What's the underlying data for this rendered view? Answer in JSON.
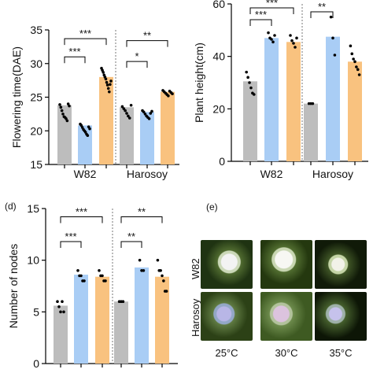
{
  "colors": {
    "gray": "#bdbdbd",
    "blue": "#a9cdf5",
    "orange": "#f9c27f",
    "dot": "#000000"
  },
  "panels": {
    "d_tag": "(d)",
    "e_tag": "(e)"
  },
  "photos": {
    "rows": [
      "W82",
      "Harosoy"
    ],
    "temperatures": [
      "25°C",
      "30°C",
      "35°C"
    ]
  },
  "chart_data": [
    {
      "id": "flowering",
      "type": "bar",
      "ylabel": "Flowering time(DAE)",
      "ylim": [
        15,
        35
      ],
      "yticks": [
        15,
        20,
        25,
        30,
        35
      ],
      "groups": [
        "W82",
        "Harosoy"
      ],
      "bars": [
        {
          "group": "W82",
          "color": "gray",
          "value": 23.8,
          "points": [
            23.9,
            23.5,
            23,
            22.5,
            22.1,
            22,
            21.8,
            21.5,
            24,
            23.7
          ]
        },
        {
          "group": "W82",
          "color": "blue",
          "value": 20.8,
          "points": [
            21,
            20.8,
            20.5,
            20.2,
            20,
            19.8,
            19.5,
            19.3,
            20.6,
            20.3
          ]
        },
        {
          "group": "W82",
          "color": "orange",
          "value": 28.0,
          "points": [
            29.3,
            29,
            28.7,
            28.3,
            28,
            27.7,
            27.2,
            26.8,
            26.3,
            25.8,
            26.9,
            27.4
          ]
        },
        {
          "group": "Harosoy",
          "color": "gray",
          "value": 23.5,
          "points": [
            23.6,
            23.3,
            23,
            22.6,
            22.2,
            21.9,
            23.8
          ]
        },
        {
          "group": "Harosoy",
          "color": "blue",
          "value": 22.8,
          "points": [
            23,
            22.8,
            22.5,
            22.2,
            22,
            21.8,
            22.6,
            22.9
          ]
        },
        {
          "group": "Harosoy",
          "color": "orange",
          "value": 25.8,
          "points": [
            26,
            25.8,
            25.6,
            25.4,
            25.2,
            25.9,
            25.7,
            25.5
          ]
        }
      ],
      "comparisons": [
        {
          "from": 0,
          "to": 1,
          "label": "***",
          "y": 31.0
        },
        {
          "from": 0,
          "to": 2,
          "label": "***",
          "y": 33.7
        },
        {
          "from": 3,
          "to": 4,
          "label": "*",
          "y": 30.3
        },
        {
          "from": 3,
          "to": 5,
          "label": "**",
          "y": 33.4
        }
      ]
    },
    {
      "id": "height",
      "type": "bar",
      "ylabel": "Plant height(cm)",
      "ylim": [
        0,
        60
      ],
      "yticks": [
        0,
        20,
        40,
        60
      ],
      "groups": [
        "W82",
        "Harosoy"
      ],
      "bars": [
        {
          "group": "W82",
          "color": "gray",
          "value": 30.5,
          "points": [
            34,
            32,
            30,
            28,
            26,
            25.5
          ]
        },
        {
          "group": "W82",
          "color": "blue",
          "value": 47,
          "points": [
            49,
            47,
            46.5,
            45.5,
            48
          ]
        },
        {
          "group": "W82",
          "color": "orange",
          "value": 45.5,
          "points": [
            48,
            46,
            45,
            43.5,
            47
          ]
        },
        {
          "group": "Harosoy",
          "color": "gray",
          "value": 22,
          "points": [
            22,
            22,
            22
          ]
        },
        {
          "group": "Harosoy",
          "color": "blue",
          "value": 47.5,
          "points": [
            55,
            47,
            40.5
          ]
        },
        {
          "group": "Harosoy",
          "color": "orange",
          "value": 38,
          "points": [
            44,
            41,
            39,
            38,
            36,
            35,
            33
          ]
        }
      ],
      "comparisons": [
        {
          "from": 0,
          "to": 1,
          "label": "***",
          "y": 54
        },
        {
          "from": 0,
          "to": 2,
          "label": "***",
          "y": 58.5
        },
        {
          "from": 3,
          "to": 4,
          "label": "**",
          "y": 57
        }
      ]
    },
    {
      "id": "nodes",
      "type": "bar",
      "ylabel": "Number of nodes",
      "ylim": [
        0,
        15
      ],
      "yticks": [
        0,
        5,
        10,
        15
      ],
      "groups": [],
      "bars": [
        {
          "group": "W82",
          "color": "gray",
          "value": 5.6,
          "points": [
            6,
            5.5,
            5,
            6,
            5
          ]
        },
        {
          "group": "W82",
          "color": "blue",
          "value": 8.6,
          "points": [
            9,
            8.5,
            8.5,
            8,
            8
          ]
        },
        {
          "group": "W82",
          "color": "orange",
          "value": 8.4,
          "points": [
            9,
            8.5,
            8.5,
            8,
            8
          ]
        },
        {
          "group": "Harosoy",
          "color": "gray",
          "value": 6,
          "points": [
            6,
            6,
            6
          ]
        },
        {
          "group": "Harosoy",
          "color": "blue",
          "value": 9.3,
          "points": [
            10,
            9,
            9
          ]
        },
        {
          "group": "Harosoy",
          "color": "orange",
          "value": 8.4,
          "points": [
            10,
            9,
            9,
            8.5,
            8,
            7,
            7
          ]
        }
      ],
      "comparisons": [
        {
          "from": 0,
          "to": 1,
          "label": "***",
          "y": 11.8
        },
        {
          "from": 0,
          "to": 2,
          "label": "***",
          "y": 14.2
        },
        {
          "from": 3,
          "to": 4,
          "label": "**",
          "y": 11.8
        },
        {
          "from": 3,
          "to": 5,
          "label": "**",
          "y": 14.2
        }
      ]
    }
  ]
}
